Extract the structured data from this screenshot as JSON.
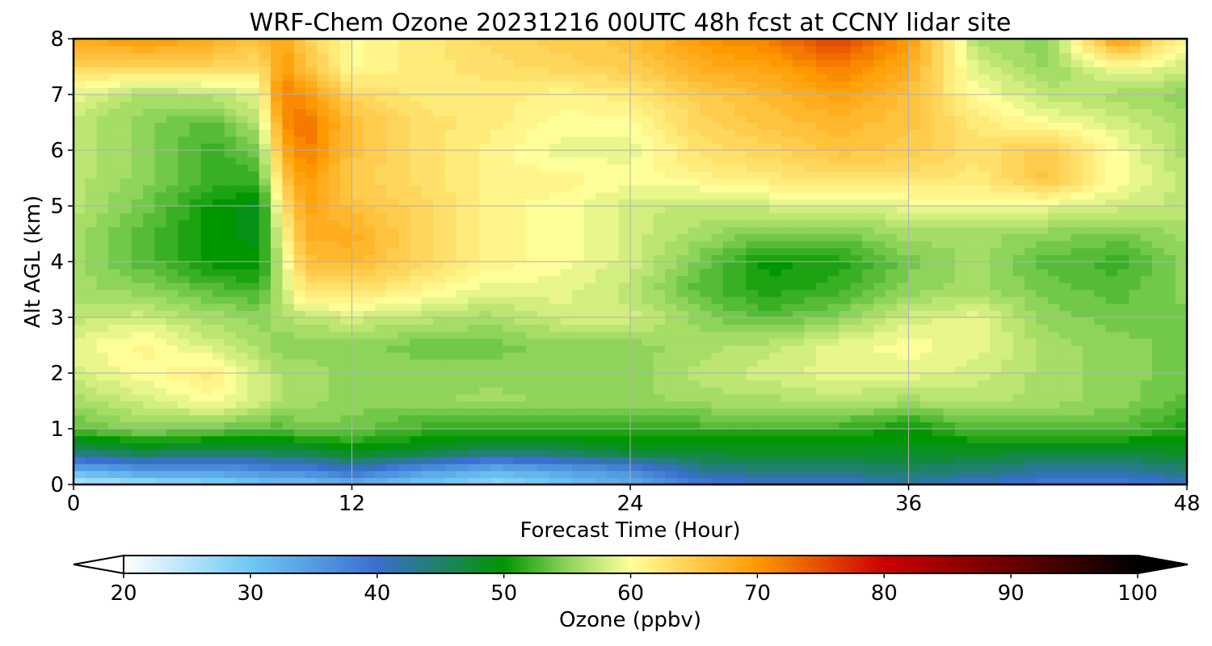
{
  "chart_data": {
    "type": "heatmap",
    "title": "WRF-Chem Ozone  20231216 00UTC 48h fcst at CCNY lidar site",
    "xlabel": "Forecast Time (Hour)",
    "ylabel": "Alt AGL (km)",
    "xlim": [
      0,
      48
    ],
    "ylim": [
      0,
      8
    ],
    "x_ticks": [
      "0",
      "12",
      "24",
      "36",
      "48"
    ],
    "y_ticks": [
      "0",
      "1",
      "2",
      "3",
      "4",
      "5",
      "6",
      "7",
      "8"
    ],
    "grid": true,
    "colorbar": {
      "label": "Ozone  (ppbv)",
      "min": 20,
      "max": 100,
      "ticks": [
        "20",
        "30",
        "40",
        "50",
        "60",
        "70",
        "80",
        "90",
        "100"
      ],
      "extend": "both",
      "orientation": "horizontal",
      "stops": [
        {
          "v": 20,
          "c": "#ffffff"
        },
        {
          "v": 30,
          "c": "#6ec8f5"
        },
        {
          "v": 40,
          "c": "#3a6ecf"
        },
        {
          "v": 50,
          "c": "#009600"
        },
        {
          "v": 55,
          "c": "#8fd45a"
        },
        {
          "v": 60,
          "c": "#ffff99"
        },
        {
          "v": 70,
          "c": "#ff9900"
        },
        {
          "v": 80,
          "c": "#cc0000"
        },
        {
          "v": 90,
          "c": "#6a0000"
        },
        {
          "v": 100,
          "c": "#000000"
        }
      ]
    },
    "x_hours": [
      0,
      3,
      6,
      8,
      9,
      10,
      12,
      15,
      18,
      21,
      24,
      27,
      30,
      33,
      36,
      39,
      42,
      45,
      48
    ],
    "z_km": [
      0,
      0.25,
      0.6,
      1,
      1.5,
      2,
      2.5,
      3,
      3.5,
      4,
      4.5,
      5,
      5.5,
      6,
      6.5,
      7,
      7.5,
      8
    ],
    "values": [
      [
        24,
        26,
        28,
        30,
        30,
        30,
        32,
        30,
        27,
        30,
        33,
        38,
        40,
        40,
        42,
        40,
        38,
        38,
        40
      ],
      [
        32,
        35,
        35,
        36,
        37,
        37,
        40,
        35,
        32,
        34,
        36,
        43,
        44,
        44,
        45,
        44,
        42,
        42,
        44
      ],
      [
        45,
        47,
        46,
        46,
        47,
        47,
        49,
        48,
        45,
        46,
        48,
        48,
        48,
        48,
        49,
        48,
        48,
        48,
        48
      ],
      [
        53,
        55,
        54,
        53,
        53,
        54,
        54,
        52,
        52,
        52,
        52,
        52,
        52,
        52,
        50,
        53,
        53,
        53,
        51
      ],
      [
        56,
        58,
        60,
        58,
        56,
        56,
        55,
        55,
        56,
        55,
        55,
        56,
        56,
        57,
        56,
        57,
        56,
        55,
        53
      ],
      [
        58,
        60,
        62,
        58,
        56,
        56,
        55,
        55,
        55,
        55,
        55,
        57,
        58,
        59,
        59,
        58,
        56,
        55,
        54
      ],
      [
        59,
        61,
        58,
        56,
        55,
        55,
        55,
        54,
        54,
        55,
        55,
        56,
        57,
        59,
        60,
        59,
        56,
        55,
        54
      ],
      [
        57,
        58,
        56,
        55,
        56,
        57,
        58,
        57,
        56,
        58,
        58,
        55,
        53,
        55,
        58,
        59,
        55,
        54,
        54
      ],
      [
        56,
        55,
        53,
        52,
        57,
        63,
        63,
        61,
        59,
        59,
        57,
        53,
        51,
        52,
        55,
        56,
        54,
        53,
        55
      ],
      [
        56,
        53,
        50,
        50,
        58,
        66,
        67,
        64,
        61,
        60,
        58,
        54,
        50,
        51,
        54,
        56,
        53,
        52,
        55
      ],
      [
        56,
        53,
        50,
        49,
        60,
        68,
        68,
        64,
        61,
        60,
        58,
        56,
        54,
        54,
        56,
        56,
        55,
        54,
        56
      ],
      [
        57,
        54,
        50,
        49,
        62,
        69,
        66,
        64,
        61,
        60,
        58,
        57,
        58,
        58,
        59,
        60,
        59,
        58,
        57
      ],
      [
        57,
        55,
        52,
        52,
        65,
        70,
        65,
        63,
        61,
        61,
        60,
        61,
        62,
        63,
        63,
        62,
        66,
        60,
        57
      ],
      [
        57,
        55,
        52,
        54,
        68,
        72,
        66,
        63,
        61,
        59,
        59,
        63,
        64,
        66,
        65,
        63,
        65,
        60,
        56
      ],
      [
        57,
        55,
        53,
        57,
        70,
        73,
        66,
        63,
        62,
        60,
        60,
        64,
        66,
        67,
        66,
        62,
        60,
        58,
        56
      ],
      [
        59,
        56,
        57,
        59,
        72,
        70,
        64,
        62,
        62,
        61,
        62,
        65,
        67,
        69,
        66,
        60,
        57,
        56,
        55
      ],
      [
        64,
        64,
        64,
        63,
        70,
        66,
        60,
        62,
        63,
        64,
        65,
        68,
        69,
        72,
        68,
        58,
        55,
        60,
        58
      ],
      [
        68,
        70,
        68,
        66,
        69,
        65,
        60,
        62,
        64,
        65,
        66,
        70,
        72,
        76,
        70,
        56,
        55,
        70,
        60
      ]
    ]
  }
}
